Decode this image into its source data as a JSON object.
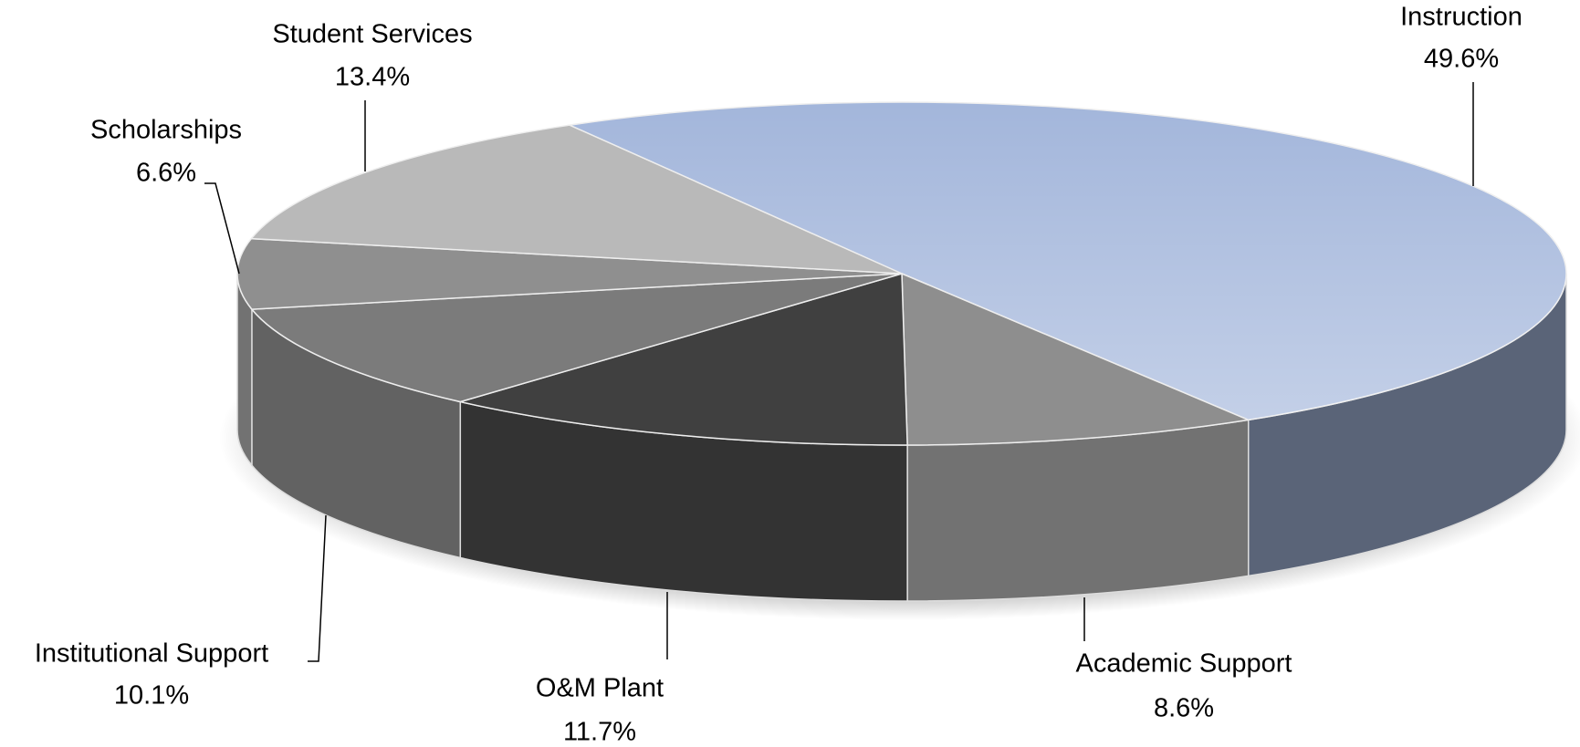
{
  "chart_data": {
    "type": "pie3d",
    "categories": [
      "Instruction",
      "Academic Support",
      "O&M Plant",
      "Institutional Support",
      "Scholarships",
      "Student Services"
    ],
    "values": [
      49.6,
      8.6,
      11.7,
      10.1,
      6.6,
      13.4
    ],
    "value_labels": [
      "49.6%",
      "8.6%",
      "11.7%",
      "10.1%",
      "6.6%",
      "13.4%"
    ],
    "colors": [
      "#a3b6db",
      "#8e8e8e",
      "#404040",
      "#7b7b7b",
      "#8f8f8f",
      "#b9b9b9"
    ]
  }
}
